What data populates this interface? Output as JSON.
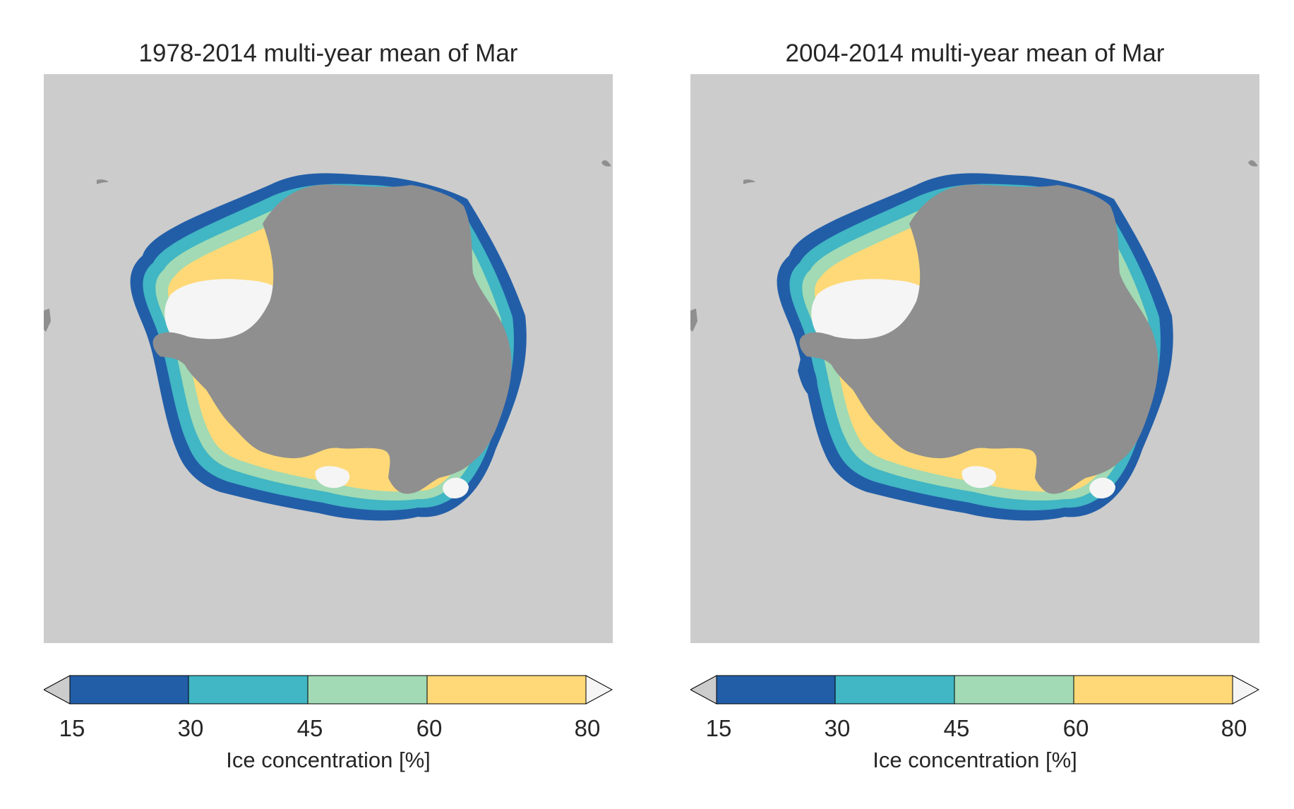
{
  "figure": {
    "panels": [
      {
        "title": "1978-2014 multi-year mean of Mar",
        "colorbar": {
          "ticks": [
            "15",
            "30",
            "45",
            "60",
            "80"
          ],
          "label": "Ice concentration [%]"
        }
      },
      {
        "title": "2004-2014 multi-year mean of Mar",
        "colorbar": {
          "ticks": [
            "15",
            "30",
            "45",
            "60",
            "80"
          ],
          "label": "Ice concentration [%]"
        }
      }
    ]
  },
  "legend": {
    "bins": [
      {
        "range": "<15",
        "color": "#cccccc"
      },
      {
        "range": "15-30",
        "color": "#225ea8"
      },
      {
        "range": "30-45",
        "color": "#41b6c4"
      },
      {
        "range": "45-60",
        "color": "#a1dab4"
      },
      {
        "range": "60-80",
        "color": "#ffd977"
      },
      {
        "range": ">80",
        "color": "#f5f5f5"
      }
    ],
    "land_color": "#8f8f8f",
    "ocean_color": "#cccccc"
  }
}
